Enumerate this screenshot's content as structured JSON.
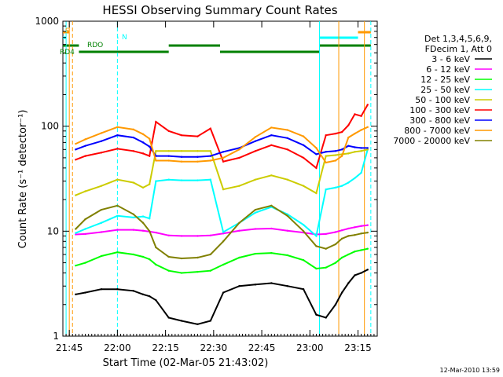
{
  "chart_data": {
    "type": "line",
    "title": "HESSI Observing Summary Count Rates",
    "xlabel": "Start Time (02-Mar-05 21:43:02)",
    "ylabel": "Count Rate (s⁻¹ detector⁻¹)",
    "y_scale": "log",
    "ylim": [
      1,
      1000
    ],
    "xlim": [
      "21:43",
      "23:21"
    ],
    "x_ticks": [
      "21:45",
      "22:00",
      "22:15",
      "22:30",
      "22:45",
      "23:00",
      "23:15"
    ],
    "y_ticks": [
      "1",
      "10",
      "100",
      "1000"
    ],
    "grid": false,
    "legend_position": "right",
    "legend_header": [
      "Det 1,3,4,5,6,9,",
      "FDecim 1, Att 0"
    ],
    "timestamp": "12-Mar-2010 13:59",
    "x": [
      "21:47",
      "21:50",
      "21:55",
      "22:00",
      "22:05",
      "22:08",
      "22:10",
      "22:12",
      "22:16",
      "22:20",
      "22:25",
      "22:29",
      "22:33",
      "22:38",
      "22:43",
      "22:48",
      "22:53",
      "22:58",
      "23:02",
      "23:05",
      "23:08",
      "23:10",
      "23:12",
      "23:14",
      "23:16",
      "23:18"
    ],
    "series": [
      {
        "name": "3 - 6 keV",
        "color": "#000000",
        "values": [
          2.5,
          2.6,
          2.8,
          2.8,
          2.7,
          2.5,
          2.4,
          2.2,
          1.5,
          1.4,
          1.3,
          1.4,
          2.6,
          3.0,
          3.1,
          3.2,
          3.0,
          2.8,
          1.6,
          1.5,
          2.0,
          2.6,
          3.2,
          3.8,
          4.0,
          4.3
        ]
      },
      {
        "name": "6 - 12 keV",
        "color": "#ff00ff",
        "values": [
          9.3,
          9.4,
          9.8,
          10.3,
          10.3,
          10.1,
          9.9,
          9.7,
          9.1,
          9.0,
          9.0,
          9.1,
          9.5,
          10.1,
          10.5,
          10.6,
          10.1,
          9.7,
          9.3,
          9.4,
          9.8,
          10.2,
          10.6,
          10.9,
          11.2,
          11.4
        ]
      },
      {
        "name": "12 - 25 keV",
        "color": "#00ff00",
        "values": [
          4.7,
          5.0,
          5.8,
          6.3,
          6.0,
          5.7,
          5.4,
          4.8,
          4.2,
          4.0,
          4.1,
          4.2,
          4.8,
          5.6,
          6.1,
          6.2,
          5.9,
          5.3,
          4.4,
          4.5,
          5.0,
          5.6,
          6.0,
          6.4,
          6.6,
          6.8
        ]
      },
      {
        "name": "25 - 50 keV",
        "color": "#00ffff",
        "values": [
          9.6,
          10.5,
          12.0,
          14.0,
          13.5,
          13.8,
          13.2,
          30.0,
          31.0,
          30.5,
          30.5,
          31.0,
          9.8,
          12.0,
          15.0,
          17.0,
          14.5,
          11.5,
          9.0,
          25.0,
          26.0,
          27.0,
          29.0,
          32.0,
          36.0,
          60.0
        ]
      },
      {
        "name": "50 - 100 keV",
        "color": "#cccc00",
        "values": [
          22,
          24,
          27,
          31,
          29,
          26,
          28,
          58,
          58,
          58,
          58,
          58,
          25,
          27,
          31,
          34,
          31,
          27,
          23,
          52,
          53,
          54,
          55,
          57,
          58,
          60
        ]
      },
      {
        "name": "100 - 300 keV",
        "color": "#ff0000",
        "values": [
          48,
          52,
          56,
          61,
          58,
          55,
          52,
          110,
          90,
          82,
          80,
          95,
          46,
          50,
          58,
          66,
          60,
          50,
          40,
          82,
          85,
          88,
          102,
          130,
          125,
          160
        ]
      },
      {
        "name": "300 - 800 keV",
        "color": "#0000ff",
        "values": [
          60,
          65,
          72,
          82,
          78,
          70,
          64,
          52,
          52,
          51,
          51,
          52,
          57,
          62,
          72,
          82,
          77,
          66,
          54,
          57,
          58,
          60,
          65,
          63,
          62,
          62
        ]
      },
      {
        "name": "800 - 7000 keV",
        "color": "#ff9900",
        "values": [
          68,
          75,
          86,
          98,
          93,
          84,
          76,
          47,
          47,
          46,
          46,
          47,
          50,
          60,
          79,
          97,
          92,
          80,
          62,
          45,
          47,
          52,
          78,
          85,
          92,
          98
        ]
      },
      {
        "name": "7000 - 20000 keV",
        "color": "#808000",
        "values": [
          10.5,
          13.0,
          16.0,
          17.5,
          14.5,
          12.0,
          10.0,
          7.0,
          5.7,
          5.5,
          5.6,
          6.0,
          8.0,
          12.0,
          16.0,
          17.5,
          14.0,
          10.0,
          7.2,
          6.8,
          7.5,
          8.5,
          9.0,
          9.2,
          9.5,
          9.7
        ]
      }
    ],
    "annotations": [
      {
        "text": "S",
        "color": "#ff9900"
      },
      {
        "text": "N",
        "color": "#00ffff"
      },
      {
        "text": "RDO",
        "color": "#008000"
      },
      {
        "text": "RD4",
        "color": "#008000"
      }
    ],
    "vertical_markers": [
      {
        "time": "21:44",
        "color": "#00ffff"
      },
      {
        "time": "21:45",
        "color": "#ff9900"
      },
      {
        "time": "21:46",
        "color": "#ff9900",
        "style": "dashed"
      },
      {
        "time": "22:00",
        "color": "#00ffff",
        "style": "dashed"
      },
      {
        "time": "23:03",
        "color": "#00ffff"
      },
      {
        "time": "23:09",
        "color": "#ff9900"
      },
      {
        "time": "23:17",
        "color": "#ff9900"
      },
      {
        "time": "23:19",
        "color": "#00ffff",
        "style": "dashed"
      }
    ],
    "status_bars": [
      {
        "color": "#00ffff",
        "segments": [
          [
            "21:43",
            "21:44"
          ],
          [
            "22:00",
            "22:00"
          ],
          [
            "23:03",
            "23:15"
          ]
        ]
      },
      {
        "color": "#ff9900",
        "segments": [
          [
            "21:43",
            "21:45"
          ],
          [
            "23:15",
            "23:19"
          ]
        ]
      },
      {
        "color": "#008000",
        "segments": [
          [
            "21:43",
            "21:48"
          ],
          [
            "22:16",
            "22:32"
          ],
          [
            "23:03",
            "23:19"
          ]
        ]
      },
      {
        "color": "#008000",
        "segments": [
          [
            "21:48",
            "22:16"
          ],
          [
            "22:32",
            "23:03"
          ]
        ]
      }
    ]
  }
}
